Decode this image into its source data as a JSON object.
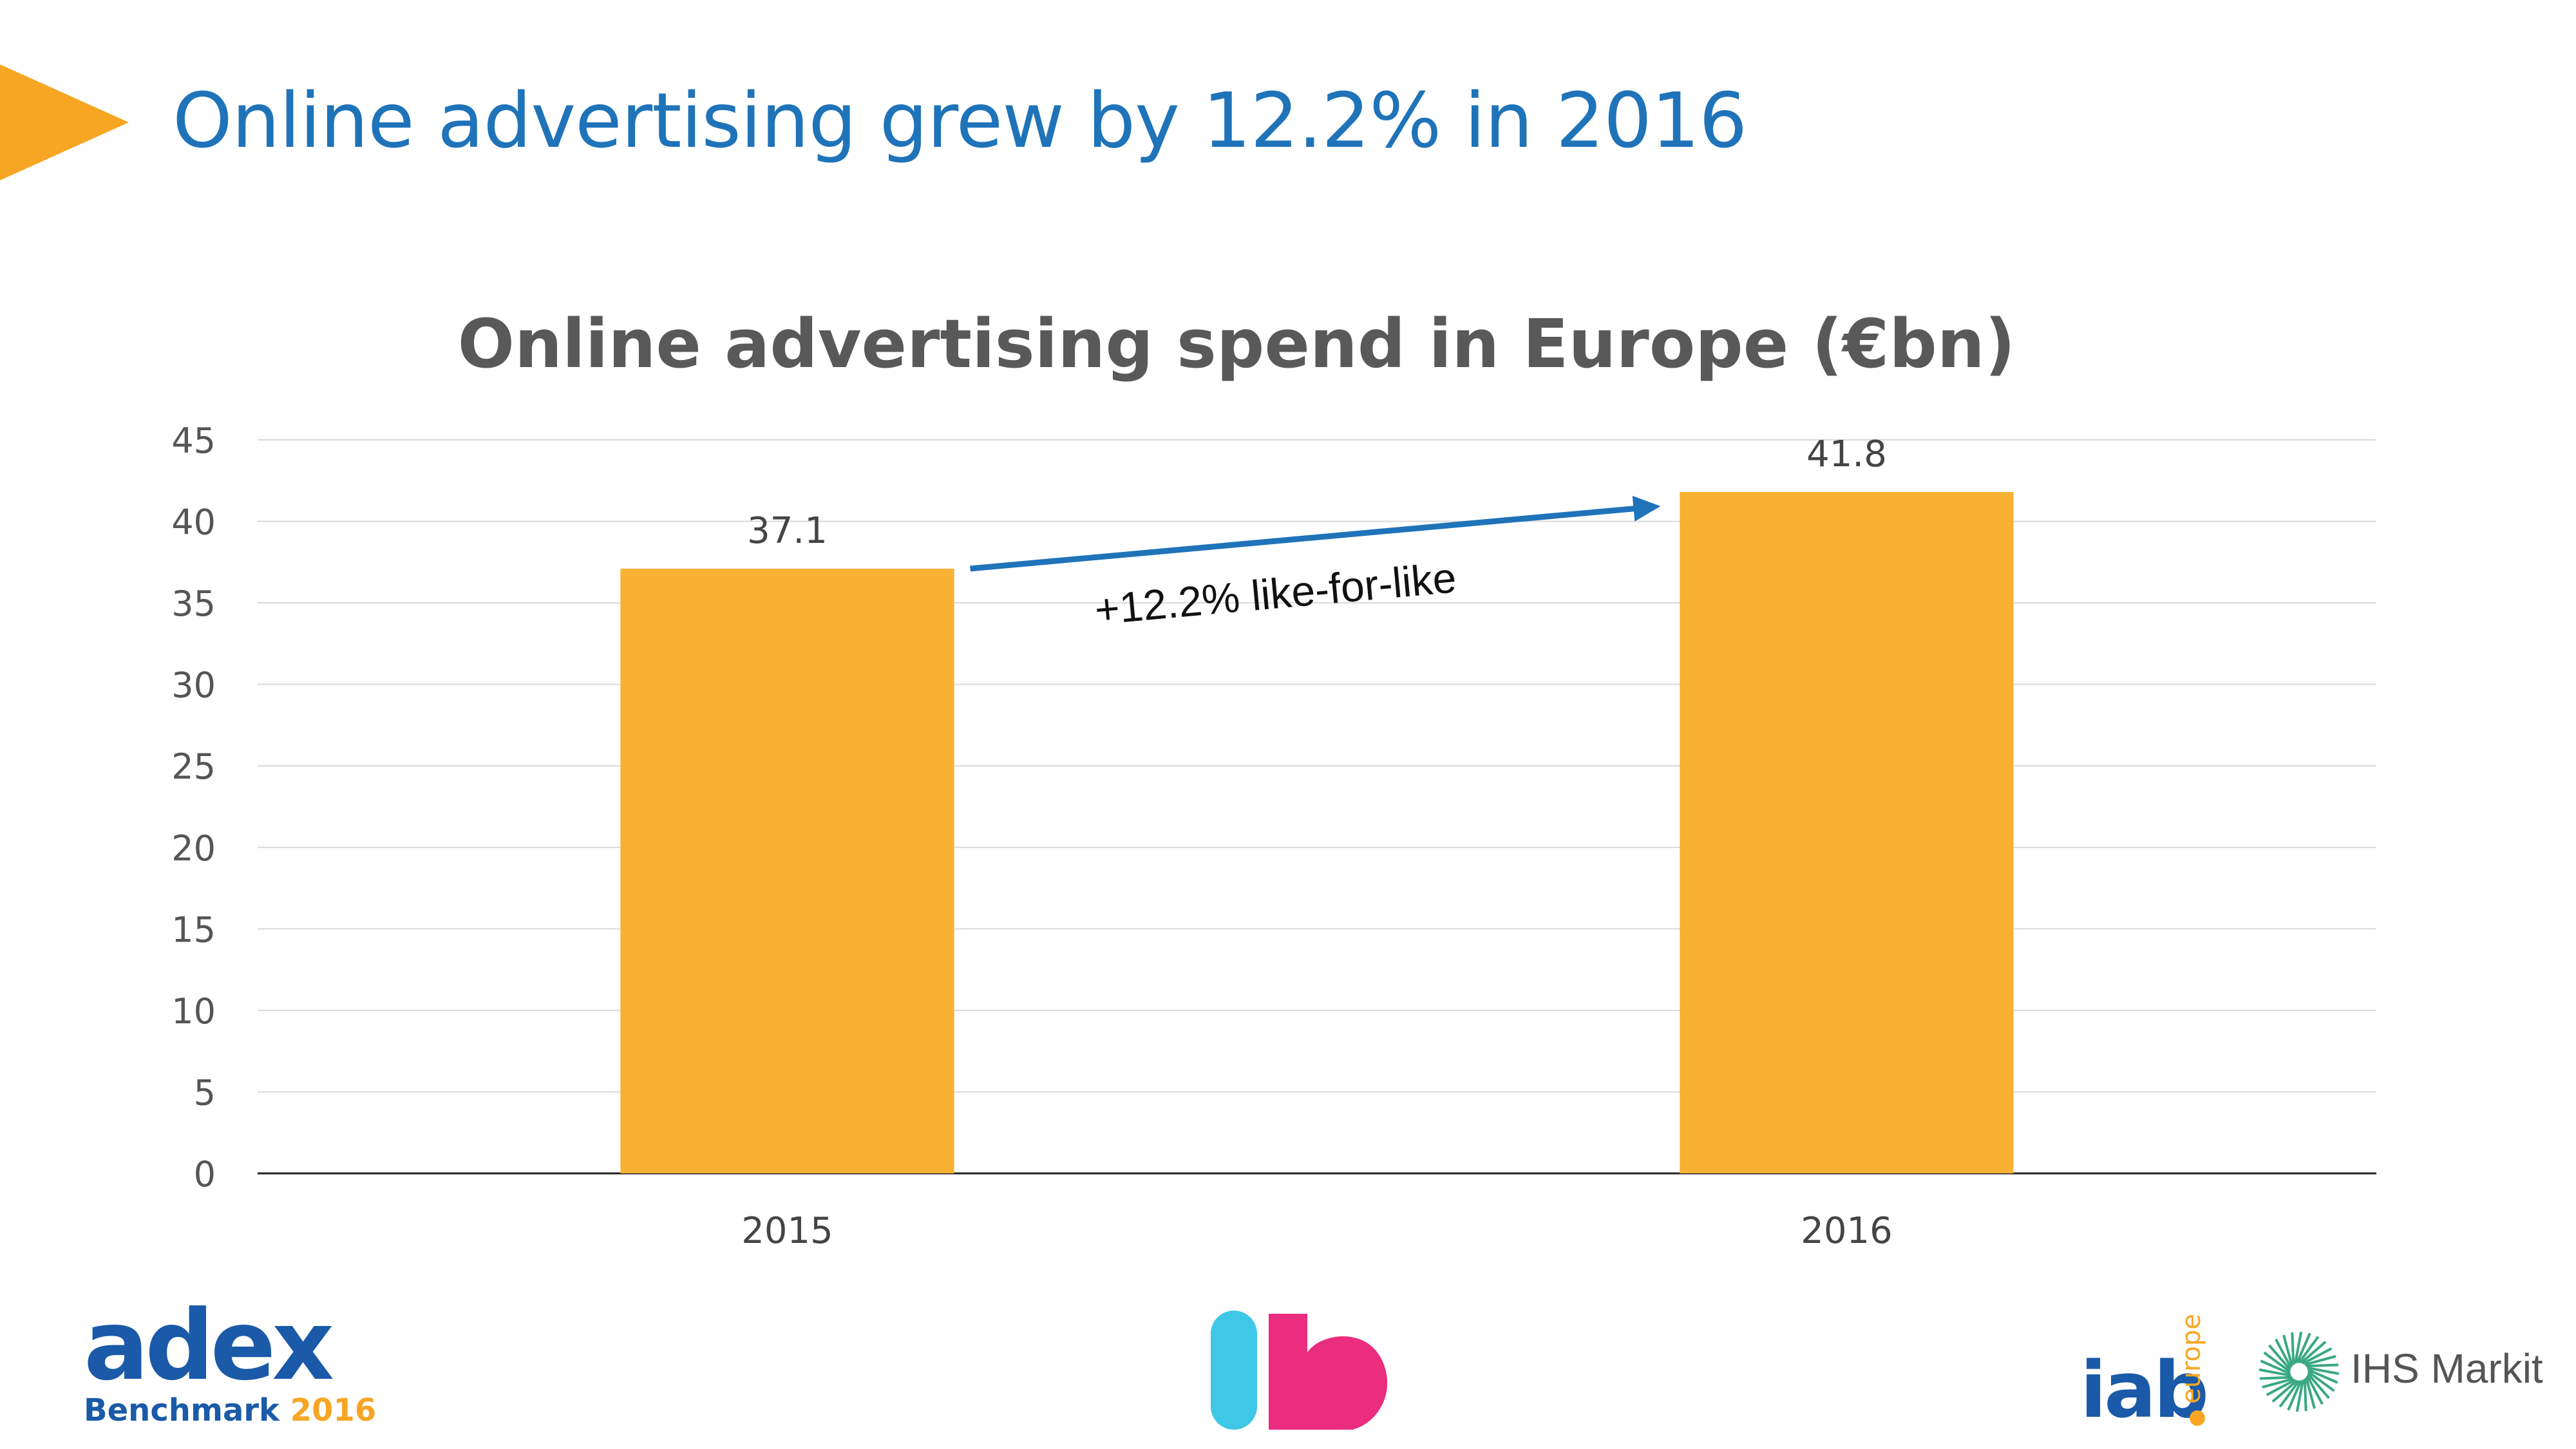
{
  "slide": {
    "title": "Online advertising grew by 12.2% in 2016",
    "accent_color": "#f6a623",
    "title_color": "#1f73b9"
  },
  "chart_data": {
    "type": "bar",
    "title": "Online advertising spend in Europe (€bn)",
    "categories": [
      "2015",
      "2016"
    ],
    "values": [
      37.1,
      41.8
    ],
    "data_labels": [
      "37.1",
      "41.8"
    ],
    "ylim": [
      0,
      45
    ],
    "yticks": [
      0,
      5,
      10,
      15,
      20,
      25,
      30,
      35,
      40,
      45
    ],
    "xlabel": "",
    "ylabel": "",
    "grid": true,
    "bar_color": "#f8b133",
    "annotation": {
      "text": "+12.2% like-for-like",
      "from_category": "2015",
      "to_category": "2016",
      "arrow_color": "#1f73b9"
    }
  },
  "logos": {
    "adex": {
      "word": "adex",
      "line2_a": "Benchmark",
      "line2_b": "2016",
      "color_blue": "#1a5aa8",
      "color_orange": "#f6a623"
    },
    "ib": {
      "color_left": "#3ec7e6",
      "color_right": "#ea2d7e"
    },
    "iab": {
      "word": "iab",
      "sub": "europe",
      "color_blue": "#1a5aa8",
      "color_dot": "#f6a623"
    },
    "ihs": {
      "word": "IHS Markit",
      "color_icon": "#39a883",
      "color_text": "#555555"
    }
  }
}
